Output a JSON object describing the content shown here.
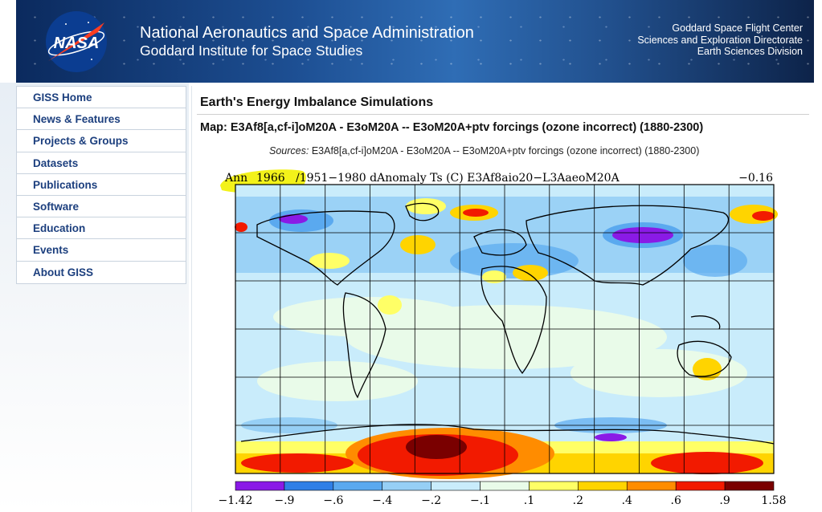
{
  "header": {
    "agency_line1": "National Aeronautics and Space Administration",
    "agency_line2": "Goddard Institute for Space Studies",
    "center_line1": "Goddard Space Flight Center",
    "center_line2": "Sciences and Exploration Directorate",
    "center_line3": "Earth Sciences Division",
    "logo_text": "NASA"
  },
  "sidebar": {
    "items": [
      {
        "label": "GISS Home"
      },
      {
        "label": "News & Features"
      },
      {
        "label": "Projects & Groups"
      },
      {
        "label": "Datasets"
      },
      {
        "label": "Publications"
      },
      {
        "label": "Software"
      },
      {
        "label": "Education"
      },
      {
        "label": "Events"
      },
      {
        "label": "About GISS"
      }
    ]
  },
  "main": {
    "page_title": "Earth's Energy Imbalance Simulations",
    "map_title": "Map: E3Af8[a,cf-i]oM20A - E3oM20A -- E3oM20A+ptv forcings (ozone incorrect) (1880-2300)",
    "sources_label": "Sources:",
    "sources_text": "E3Af8[a,cf-i]oM20A - E3oM20A -- E3oM20A+ptv forcings (ozone incorrect) (1880-2300)"
  },
  "figure": {
    "period": "Ann",
    "year": "1966",
    "description": "/1951−1980 dAnomaly Ts (C) E3Af8aio20−L3AaeoM20A",
    "global_mean": "−0.16",
    "highlight_color": "#f3f21a",
    "colorbar": {
      "colors": [
        "#8a1ae6",
        "#2f7fe6",
        "#5aa9ef",
        "#96cff5",
        "#c9ecfb",
        "#e9fbe9",
        "#ffff66",
        "#ffd400",
        "#ff8c00",
        "#f21a00",
        "#7a0000"
      ],
      "labels": [
        "−1.42",
        "−.9",
        "−.6",
        "−.4",
        "−.2",
        "−.1",
        ".1",
        ".2",
        ".4",
        ".6",
        ".9",
        "1.58"
      ]
    }
  }
}
